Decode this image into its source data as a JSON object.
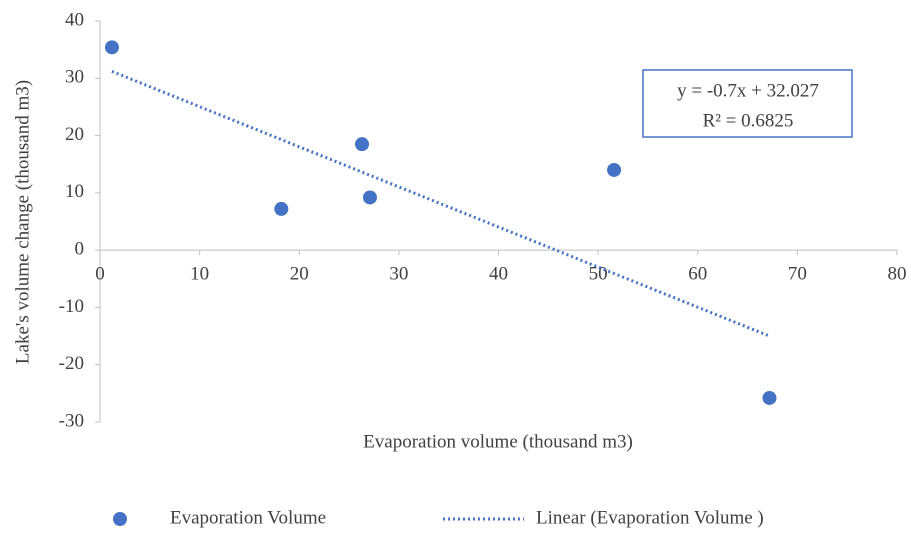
{
  "chart_data": {
    "type": "scatter",
    "x_label": "Evaporation volume (thousand m3)",
    "y_label": "Lake's volume change (thousand m3)",
    "series": [
      {
        "name": "Evaporation Volume",
        "color": "#4472c4",
        "x": [
          1.2,
          18.2,
          26.3,
          27.1,
          51.6,
          67.2
        ],
        "values": [
          35.4,
          7.2,
          18.5,
          9.2,
          14.0,
          -25.8
        ]
      }
    ],
    "trendline": {
      "name": "Linear (Evaporation Volume )",
      "color": "#4472c4",
      "x": [
        1.2,
        67.2
      ],
      "values": [
        31.2,
        -15.0
      ]
    },
    "annotations": [
      "y = -0.7x + 32.027",
      "R² = 0.6825"
    ],
    "xlim": [
      0,
      80
    ],
    "xticks": [
      0,
      10,
      20,
      30,
      40,
      50,
      60,
      70,
      80
    ],
    "ylim": [
      -30,
      40
    ],
    "yticks": [
      -30,
      -20,
      -10,
      0,
      10,
      20,
      30,
      40
    ],
    "grid": false,
    "legend": "bottom"
  }
}
